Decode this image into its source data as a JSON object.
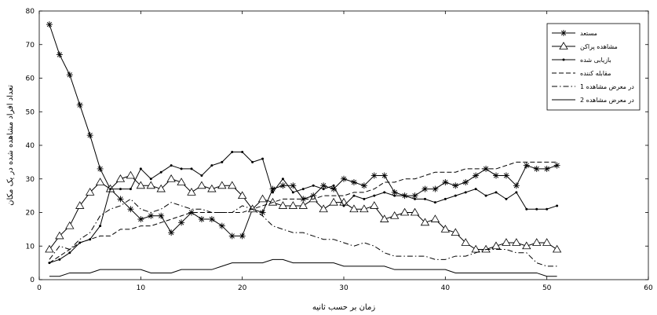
{
  "chart_data": {
    "type": "line",
    "xlabel": "زمان بر حسب ثانیه",
    "ylabel": "تعداد افراد مشاهده شده در یک مکان",
    "xlim": [
      0,
      60
    ],
    "ylim": [
      0,
      80
    ],
    "xticks": [
      0,
      10,
      20,
      30,
      40,
      50,
      60
    ],
    "yticks": [
      0,
      10,
      20,
      30,
      40,
      50,
      60,
      70,
      80
    ],
    "legend_position": "top-right",
    "grid": false,
    "series": [
      {
        "name": "مستعد",
        "marker": "star",
        "dash": "solid",
        "x": [
          1,
          2,
          3,
          4,
          5,
          6,
          7,
          8,
          9,
          10,
          11,
          12,
          13,
          14,
          15,
          16,
          17,
          18,
          19,
          20,
          21,
          22,
          23,
          24,
          25,
          26,
          27,
          28,
          29,
          30,
          31,
          32,
          33,
          34,
          35,
          36,
          37,
          38,
          39,
          40,
          41,
          42,
          43,
          44,
          45,
          46,
          47,
          48,
          49,
          50,
          51
        ],
        "y": [
          76,
          67,
          61,
          52,
          43,
          33,
          27,
          24,
          21,
          18,
          19,
          19,
          14,
          17,
          20,
          18,
          18,
          16,
          13,
          13,
          21,
          20,
          27,
          28,
          28,
          24,
          25,
          28,
          27,
          30,
          29,
          28,
          31,
          31,
          26,
          25,
          25,
          27,
          27,
          29,
          28,
          29,
          31,
          33,
          31,
          31,
          28,
          34,
          33,
          33,
          34
        ]
      },
      {
        "name": "مشاهده پراکن",
        "marker": "triangle",
        "dash": "solid",
        "x": [
          1,
          2,
          3,
          4,
          5,
          6,
          7,
          8,
          9,
          10,
          11,
          12,
          13,
          14,
          15,
          16,
          17,
          18,
          19,
          20,
          21,
          22,
          23,
          24,
          25,
          26,
          27,
          28,
          29,
          30,
          31,
          32,
          33,
          34,
          35,
          36,
          37,
          38,
          39,
          40,
          41,
          42,
          43,
          44,
          45,
          46,
          47,
          48,
          49,
          50,
          51
        ],
        "y": [
          9,
          13,
          16,
          22,
          26,
          29,
          27,
          30,
          31,
          28,
          28,
          27,
          30,
          29,
          26,
          28,
          27,
          28,
          28,
          25,
          21,
          24,
          23,
          22,
          22,
          22,
          24,
          21,
          23,
          23,
          21,
          21,
          22,
          18,
          19,
          20,
          20,
          17,
          18,
          15,
          14,
          11,
          9,
          9,
          10,
          11,
          11,
          10,
          11,
          11,
          9
        ]
      },
      {
        "name": "بازیابی شده",
        "marker": "dot",
        "dash": "solid",
        "x": [
          1,
          2,
          3,
          4,
          5,
          6,
          7,
          8,
          9,
          10,
          11,
          12,
          13,
          14,
          15,
          16,
          17,
          18,
          19,
          20,
          21,
          22,
          23,
          24,
          25,
          26,
          27,
          28,
          29,
          30,
          31,
          32,
          33,
          34,
          35,
          36,
          37,
          38,
          39,
          40,
          41,
          42,
          43,
          44,
          45,
          46,
          47,
          48,
          49,
          50,
          51
        ],
        "y": [
          5,
          6,
          8,
          11,
          12,
          16,
          27,
          27,
          27,
          33,
          30,
          32,
          34,
          33,
          33,
          31,
          34,
          35,
          38,
          38,
          35,
          36,
          26,
          30,
          26,
          27,
          28,
          27,
          28,
          22,
          25,
          24,
          25,
          26,
          25,
          25,
          24,
          24,
          23,
          24,
          25,
          26,
          27,
          25,
          26,
          24,
          26,
          21,
          21,
          21,
          22
        ]
      },
      {
        "name": "مقابله کننده",
        "marker": "none",
        "dash": "dashed",
        "x": [
          1,
          2,
          3,
          4,
          5,
          6,
          7,
          8,
          9,
          10,
          11,
          12,
          13,
          14,
          15,
          16,
          17,
          18,
          19,
          20,
          21,
          22,
          23,
          24,
          25,
          26,
          27,
          28,
          29,
          30,
          31,
          32,
          33,
          34,
          35,
          36,
          37,
          38,
          39,
          40,
          41,
          42,
          43,
          44,
          45,
          46,
          47,
          48,
          49,
          50,
          51
        ],
        "y": [
          5,
          7,
          9,
          11,
          12,
          13,
          13,
          15,
          15,
          16,
          16,
          17,
          18,
          19,
          20,
          20,
          20,
          20,
          20,
          20,
          21,
          22,
          23,
          24,
          24,
          24,
          24,
          25,
          25,
          25,
          26,
          26,
          27,
          29,
          29,
          30,
          30,
          31,
          32,
          32,
          32,
          33,
          33,
          33,
          33,
          34,
          35,
          35,
          35,
          35,
          35
        ]
      },
      {
        "name": "در معرض مشاهده 1",
        "marker": "none",
        "dash": "dashdot",
        "x": [
          1,
          2,
          3,
          4,
          5,
          6,
          7,
          8,
          9,
          10,
          11,
          12,
          13,
          14,
          15,
          16,
          17,
          18,
          19,
          20,
          21,
          22,
          23,
          24,
          25,
          26,
          27,
          28,
          29,
          30,
          31,
          32,
          33,
          34,
          35,
          36,
          37,
          38,
          39,
          40,
          41,
          42,
          43,
          44,
          45,
          46,
          47,
          48,
          49,
          50,
          51
        ],
        "y": [
          6,
          10,
          9,
          12,
          14,
          19,
          21,
          22,
          24,
          21,
          20,
          21,
          23,
          22,
          21,
          21,
          20,
          20,
          20,
          22,
          21,
          19,
          16,
          15,
          14,
          14,
          13,
          12,
          12,
          11,
          10,
          11,
          10,
          8,
          7,
          7,
          7,
          7,
          6,
          6,
          7,
          7,
          8,
          9,
          9,
          9,
          8,
          8,
          5,
          4,
          4
        ]
      },
      {
        "name": "در معرض مشاهده 2",
        "marker": "none",
        "dash": "solid",
        "x": [
          1,
          2,
          3,
          4,
          5,
          6,
          7,
          8,
          9,
          10,
          11,
          12,
          13,
          14,
          15,
          16,
          17,
          18,
          19,
          20,
          21,
          22,
          23,
          24,
          25,
          26,
          27,
          28,
          29,
          30,
          31,
          32,
          33,
          34,
          35,
          36,
          37,
          38,
          39,
          40,
          41,
          42,
          43,
          44,
          45,
          46,
          47,
          48,
          49,
          50,
          51
        ],
        "y": [
          1,
          1,
          2,
          2,
          2,
          3,
          3,
          3,
          3,
          3,
          2,
          2,
          2,
          3,
          3,
          3,
          3,
          4,
          5,
          5,
          5,
          5,
          6,
          6,
          5,
          5,
          5,
          5,
          5,
          4,
          4,
          4,
          4,
          4,
          3,
          3,
          3,
          3,
          3,
          3,
          2,
          2,
          2,
          2,
          2,
          2,
          2,
          2,
          2,
          1,
          1
        ]
      }
    ]
  }
}
